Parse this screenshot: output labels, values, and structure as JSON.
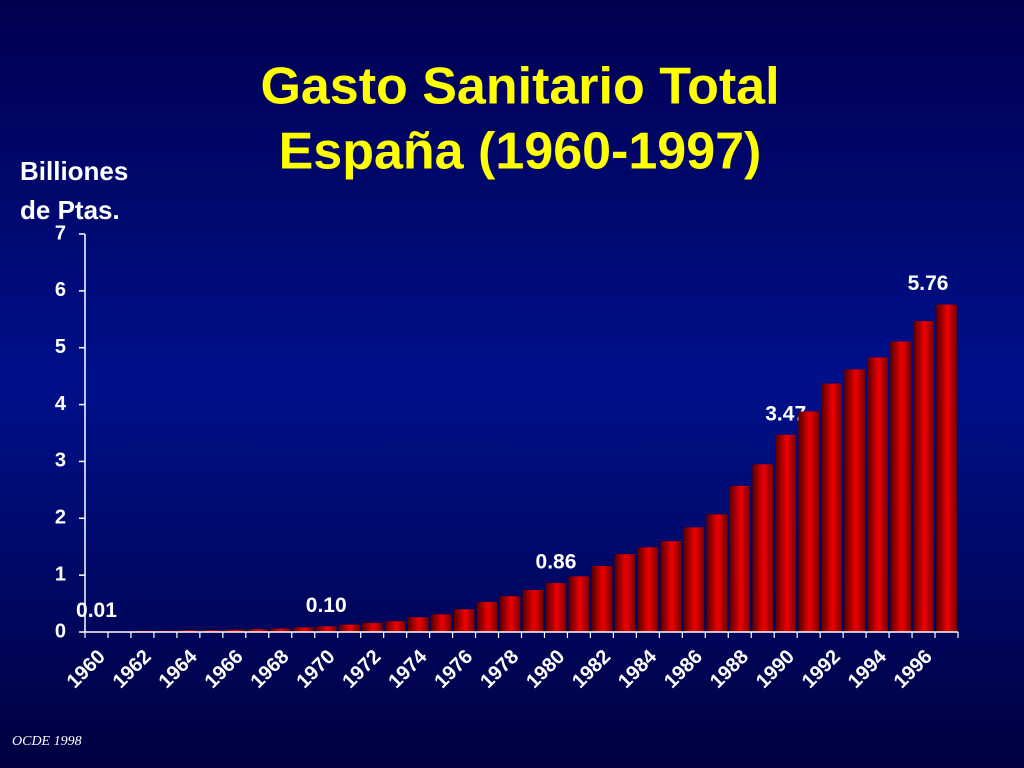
{
  "chart_data": {
    "type": "bar",
    "title": [
      "Gasto Sanitario Total",
      "España (1960-1997)"
    ],
    "ylabel": [
      "Billiones",
      "de Ptas."
    ],
    "source": "OCDE 1998",
    "categories": [
      "1960",
      null,
      "1962",
      null,
      "1964",
      null,
      "1966",
      null,
      "1968",
      null,
      "1970",
      null,
      "1972",
      null,
      "1974",
      null,
      "1976",
      null,
      "1978",
      null,
      "1980",
      null,
      "1982",
      null,
      "1984",
      null,
      "1986",
      null,
      "1988",
      null,
      "1990",
      null,
      "1992",
      null,
      "1994",
      null,
      "1996",
      null
    ],
    "values": [
      0.01,
      0.01,
      0.02,
      0.02,
      0.03,
      0.03,
      0.04,
      0.05,
      0.06,
      0.08,
      0.1,
      0.13,
      0.16,
      0.19,
      0.26,
      0.31,
      0.4,
      0.53,
      0.63,
      0.74,
      0.86,
      0.98,
      1.16,
      1.37,
      1.49,
      1.6,
      1.84,
      2.07,
      2.57,
      2.95,
      3.47,
      3.88,
      4.37,
      4.62,
      4.83,
      5.11,
      5.47,
      5.76
    ],
    "value_labels": [
      "0.01",
      null,
      null,
      null,
      null,
      null,
      null,
      null,
      null,
      null,
      "0.10",
      null,
      null,
      null,
      null,
      null,
      null,
      null,
      null,
      null,
      "0.86",
      null,
      null,
      null,
      null,
      null,
      null,
      null,
      null,
      null,
      "3.47",
      null,
      null,
      null,
      null,
      null,
      null,
      "5.76"
    ],
    "color": "#ee0000",
    "ylim": [
      0,
      7
    ],
    "yticks": [
      0,
      1,
      2,
      3,
      4,
      5,
      6,
      7
    ]
  }
}
